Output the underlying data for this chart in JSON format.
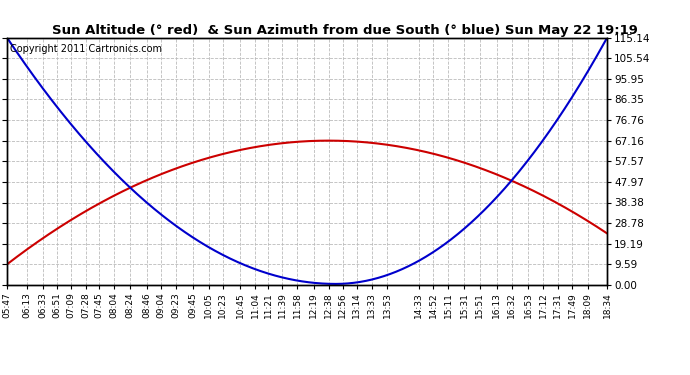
{
  "title": "Sun Altitude (° red)  & Sun Azimuth from due South (° blue) Sun May 22 19:19",
  "copyright": "Copyright 2011 Cartronics.com",
  "y_ticks": [
    0.0,
    9.59,
    19.19,
    28.78,
    38.38,
    47.97,
    57.57,
    67.16,
    76.76,
    86.35,
    95.95,
    105.54,
    115.14
  ],
  "y_min": 0.0,
  "y_max": 115.14,
  "x_labels": [
    "05:47",
    "06:13",
    "06:33",
    "06:51",
    "07:09",
    "07:28",
    "07:45",
    "08:04",
    "08:24",
    "08:46",
    "09:04",
    "09:23",
    "09:45",
    "10:05",
    "10:23",
    "10:45",
    "11:04",
    "11:21",
    "11:39",
    "11:58",
    "12:19",
    "12:38",
    "12:56",
    "13:14",
    "13:33",
    "13:53",
    "14:33",
    "14:52",
    "15:11",
    "15:31",
    "15:51",
    "16:13",
    "16:32",
    "16:53",
    "17:12",
    "17:31",
    "17:49",
    "18:09",
    "18:34"
  ],
  "bg_color": "#ffffff",
  "plot_bg_color": "#ffffff",
  "grid_color": "#bbbbbb",
  "line_color_altitude": "#cc0000",
  "line_color_azimuth": "#0000cc",
  "title_color": "#000000",
  "copyright_color": "#000000",
  "title_fontsize": 9.5,
  "copyright_fontsize": 7,
  "tick_fontsize": 7.5,
  "x_tick_fontsize": 6.5
}
